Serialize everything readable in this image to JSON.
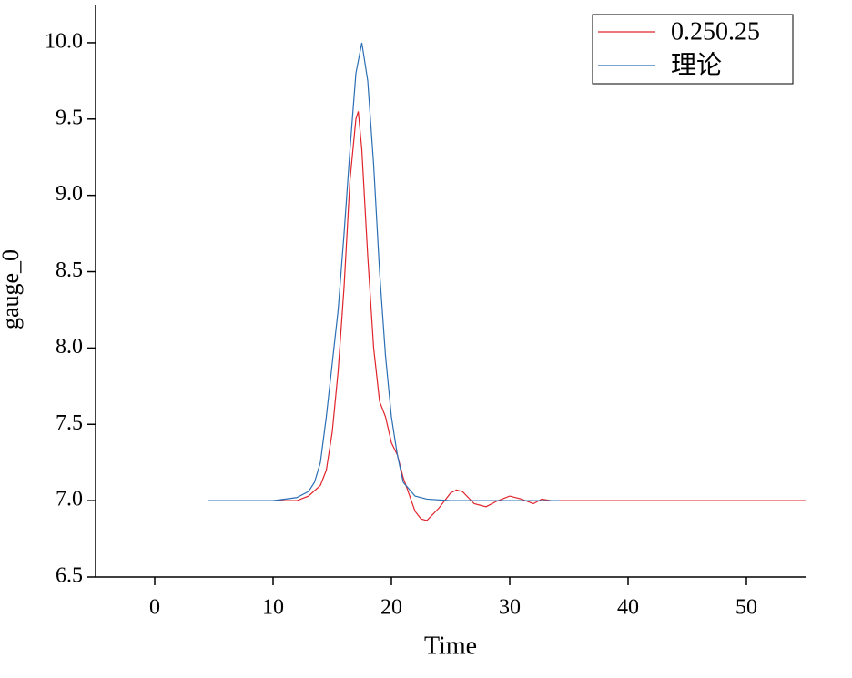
{
  "chart_data": {
    "type": "line",
    "x_label": "Time",
    "y_label": "gauge_0",
    "xlim": [
      -5,
      55
    ],
    "xticks": [
      0,
      10,
      20,
      30,
      40,
      50
    ],
    "ylim": [
      6.5,
      10.25
    ],
    "yticks": [
      6.5,
      {
        "value": 7,
        "label": "7.0"
      },
      7.5,
      {
        "value": 8,
        "label": "8.0"
      },
      8.5,
      {
        "value": 9,
        "label": "9.0"
      },
      9.5,
      {
        "value": 10,
        "label": "10.0"
      }
    ],
    "legend": "top-right",
    "series": [
      {
        "name": "0.250.25",
        "color": "#e0242b",
        "x": [
          9.6,
          12,
          13,
          14,
          14.5,
          15,
          15.5,
          16,
          16.5,
          17,
          17.2,
          17.5,
          18,
          18.5,
          19,
          19.5,
          20,
          20.5,
          21,
          22,
          22.5,
          23,
          24,
          25,
          25.5,
          26,
          27,
          28,
          29,
          30,
          31,
          32,
          32.7,
          33.5,
          55
        ],
        "values": [
          7.0,
          7.0,
          7.03,
          7.1,
          7.2,
          7.45,
          7.85,
          8.4,
          9.1,
          9.5,
          9.55,
          9.3,
          8.6,
          8.0,
          7.65,
          7.55,
          7.38,
          7.3,
          7.15,
          6.93,
          6.88,
          6.87,
          6.95,
          7.05,
          7.07,
          7.06,
          6.98,
          6.96,
          7.0,
          7.03,
          7.01,
          6.98,
          7.01,
          7.0,
          7.0
        ]
      },
      {
        "name": "理论",
        "color": "#2a6fb5",
        "x": [
          4.5,
          10,
          12,
          13,
          13.5,
          14,
          14.5,
          15,
          15.5,
          16,
          16.5,
          17,
          17.5,
          18,
          18.5,
          19,
          19.5,
          20,
          20.5,
          21,
          22,
          23,
          25,
          34.2
        ],
        "values": [
          7.0,
          7.0,
          7.02,
          7.06,
          7.12,
          7.25,
          7.55,
          7.9,
          8.25,
          8.75,
          9.3,
          9.8,
          10.0,
          9.75,
          9.2,
          8.5,
          7.95,
          7.55,
          7.3,
          7.12,
          7.03,
          7.01,
          7.0,
          7.0
        ]
      }
    ]
  }
}
